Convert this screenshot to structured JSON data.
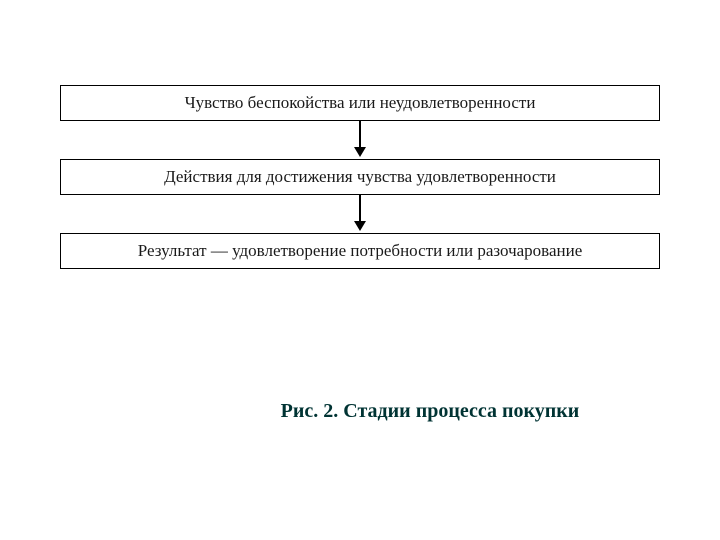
{
  "flowchart": {
    "type": "flowchart",
    "background_color": "#ffffff",
    "box_border_color": "#000000",
    "box_border_width": 1,
    "text_color": "#1a1a1a",
    "font_family": "Times New Roman",
    "font_size": 17,
    "arrow_color": "#000000",
    "arrow_gap_height": 38,
    "nodes": [
      {
        "id": "n1",
        "label": "Чувство беспокойства или неудовлетворенности"
      },
      {
        "id": "n2",
        "label": "Действия для достижения чувства удовлетворенности"
      },
      {
        "id": "n3",
        "label": "Результат — удовлетворение потребности или разочарование"
      }
    ],
    "edges": [
      {
        "from": "n1",
        "to": "n2"
      },
      {
        "from": "n2",
        "to": "n3"
      }
    ]
  },
  "caption": {
    "text": "Рис. 2. Стадии процесса покупки",
    "color": "#003333",
    "font_size": 20,
    "font_weight": "bold"
  }
}
